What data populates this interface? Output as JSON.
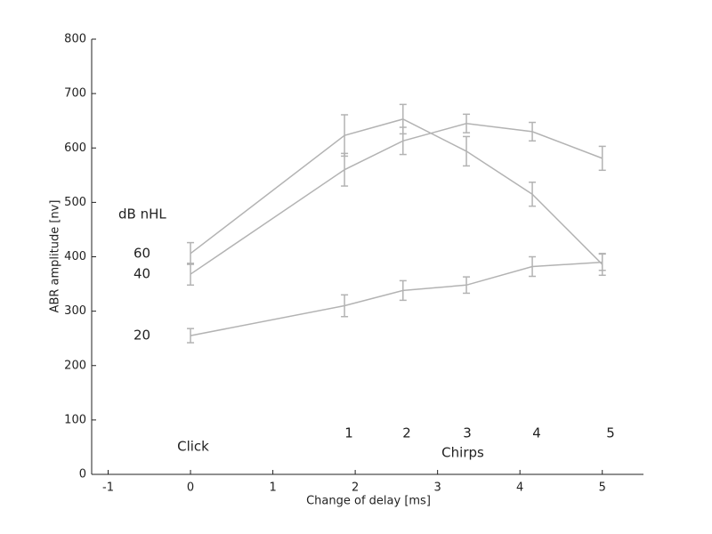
{
  "chart_data": {
    "type": "line",
    "x_label": "Change of delay [ms]",
    "y_label": "ABR amplitude [nv]",
    "legend_title": "dB nHL",
    "annotations": [
      "Click",
      "1",
      "2",
      "3",
      "4",
      "5",
      "Chirps"
    ],
    "x": [
      0,
      1.87,
      2.58,
      3.35,
      4.15,
      5
    ],
    "series": [
      {
        "name": "60",
        "color": "#b3b3b3",
        "values": [
          406,
          623,
          653,
          594,
          515,
          386
        ],
        "errors": [
          20,
          38,
          27,
          27,
          22,
          20
        ]
      },
      {
        "name": "40",
        "color": "#b3b3b3",
        "values": [
          368,
          560,
          613,
          645,
          630,
          581
        ],
        "errors": [
          20,
          30,
          25,
          17,
          17,
          22
        ]
      },
      {
        "name": "20",
        "color": "#b3b3b3",
        "values": [
          255,
          310,
          338,
          348,
          382,
          390
        ],
        "errors": [
          13,
          20,
          18,
          15,
          18,
          15
        ]
      }
    ],
    "xlim": [
      -1.2,
      5.5
    ],
    "xticks": [
      -1,
      0,
      1,
      2,
      3,
      4,
      5
    ],
    "ylim": [
      0,
      800
    ],
    "yticks": [
      0,
      100,
      200,
      300,
      400,
      500,
      600,
      700,
      800
    ]
  }
}
